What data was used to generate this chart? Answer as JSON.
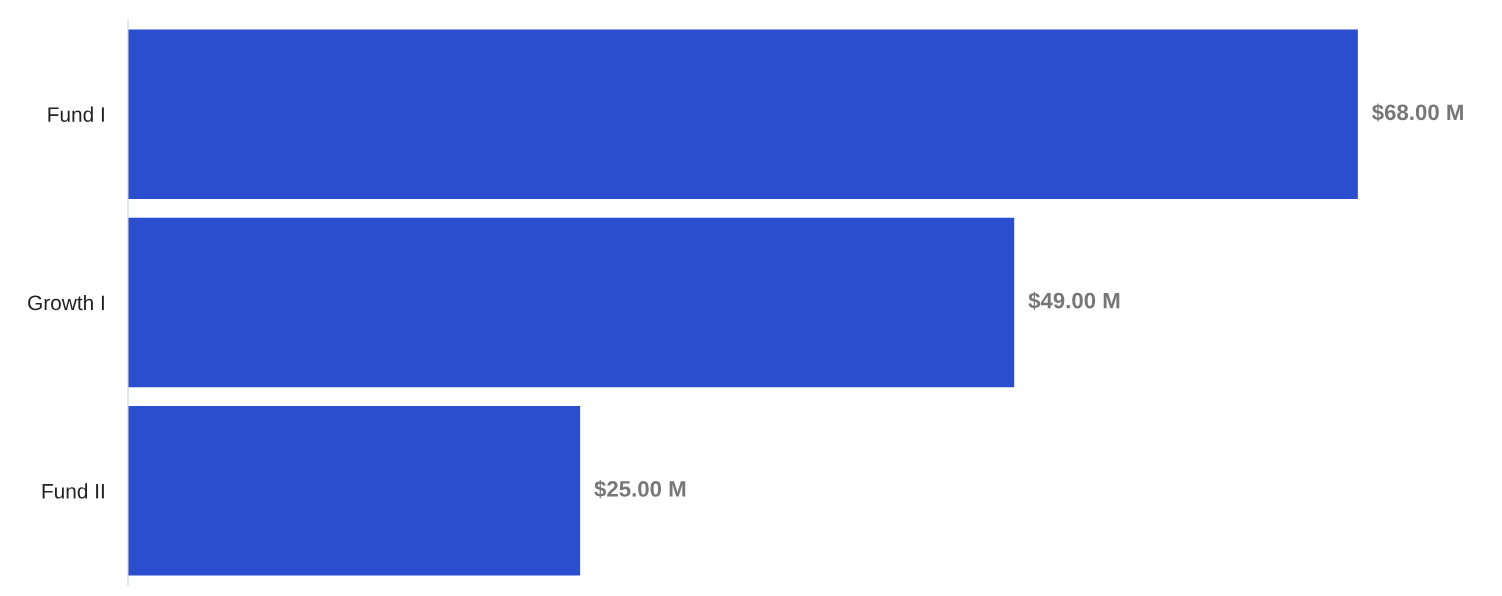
{
  "chart_data": {
    "type": "bar",
    "orientation": "horizontal",
    "categories": [
      "Fund I",
      "Growth I",
      "Fund II"
    ],
    "values": [
      68,
      49,
      25
    ],
    "value_labels": [
      "$68.00 M",
      "$49.00 M",
      "$25.00 M"
    ],
    "color": "#2b4ecf",
    "tick_labels": "y",
    "grid": false,
    "legend": false
  }
}
